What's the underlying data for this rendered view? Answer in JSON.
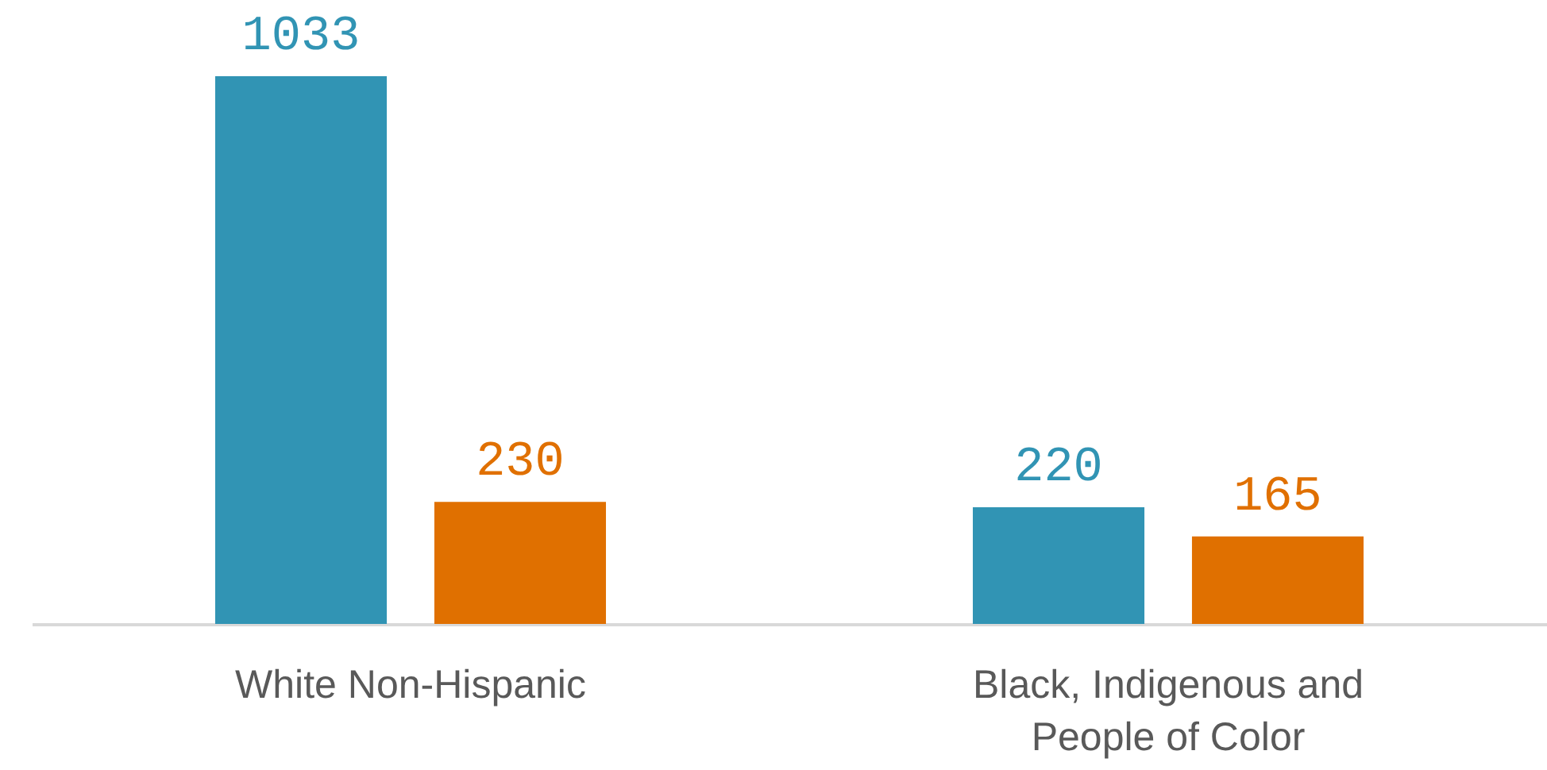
{
  "chart_data": {
    "type": "bar",
    "categories": [
      "White Non-Hispanic",
      "Black, Indigenous and People of Color"
    ],
    "series": [
      {
        "color": "#3194b4",
        "values": [
          1033,
          220
        ]
      },
      {
        "color": "#e07000",
        "values": [
          230,
          165
        ]
      }
    ],
    "data_labels": true
  }
}
